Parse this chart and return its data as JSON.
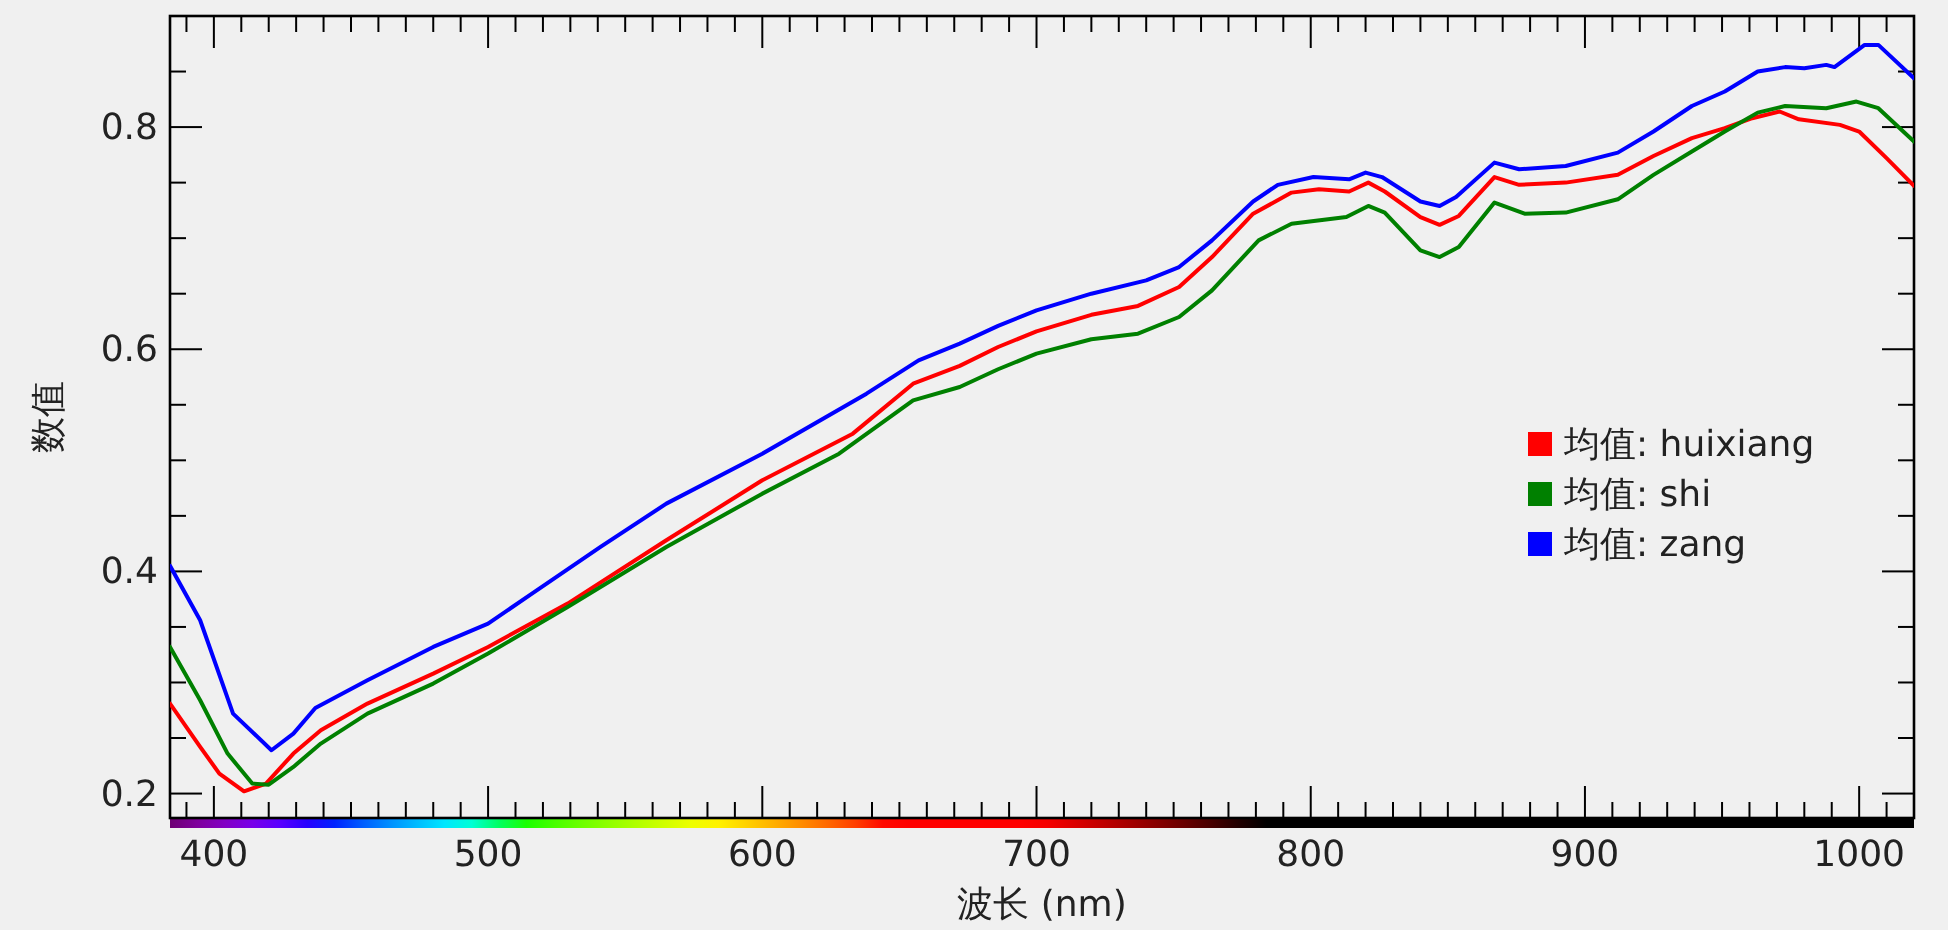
{
  "chart_data": {
    "type": "line",
    "xlabel": "波长 (nm)",
    "ylabel": "数值",
    "xlim": [
      384,
      1020
    ],
    "ylim": [
      0.178,
      0.9
    ],
    "xticks": [
      {
        "value": 390,
        "label": null
      },
      400,
      {
        "value": 410,
        "label": null
      },
      {
        "value": 420,
        "label": null
      },
      {
        "value": 430,
        "label": null
      },
      {
        "value": 440,
        "label": null
      },
      {
        "value": 450,
        "label": null
      },
      {
        "value": 460,
        "label": null
      },
      {
        "value": 470,
        "label": null
      },
      {
        "value": 480,
        "label": null
      },
      {
        "value": 490,
        "label": null
      },
      500,
      {
        "value": 510,
        "label": null
      },
      {
        "value": 520,
        "label": null
      },
      {
        "value": 530,
        "label": null
      },
      {
        "value": 540,
        "label": null
      },
      {
        "value": 550,
        "label": null
      },
      {
        "value": 560,
        "label": null
      },
      {
        "value": 570,
        "label": null
      },
      {
        "value": 580,
        "label": null
      },
      {
        "value": 590,
        "label": null
      },
      600,
      {
        "value": 610,
        "label": null
      },
      {
        "value": 620,
        "label": null
      },
      {
        "value": 630,
        "label": null
      },
      {
        "value": 640,
        "label": null
      },
      {
        "value": 650,
        "label": null
      },
      {
        "value": 660,
        "label": null
      },
      {
        "value": 670,
        "label": null
      },
      {
        "value": 680,
        "label": null
      },
      {
        "value": 690,
        "label": null
      },
      700,
      {
        "value": 710,
        "label": null
      },
      {
        "value": 720,
        "label": null
      },
      {
        "value": 730,
        "label": null
      },
      {
        "value": 740,
        "label": null
      },
      {
        "value": 750,
        "label": null
      },
      {
        "value": 760,
        "label": null
      },
      {
        "value": 770,
        "label": null
      },
      {
        "value": 780,
        "label": null
      },
      {
        "value": 790,
        "label": null
      },
      800,
      {
        "value": 810,
        "label": null
      },
      {
        "value": 820,
        "label": null
      },
      {
        "value": 830,
        "label": null
      },
      {
        "value": 840,
        "label": null
      },
      {
        "value": 850,
        "label": null
      },
      {
        "value": 860,
        "label": null
      },
      {
        "value": 870,
        "label": null
      },
      {
        "value": 880,
        "label": null
      },
      {
        "value": 890,
        "label": null
      },
      900,
      {
        "value": 910,
        "label": null
      },
      {
        "value": 920,
        "label": null
      },
      {
        "value": 930,
        "label": null
      },
      {
        "value": 940,
        "label": null
      },
      {
        "value": 950,
        "label": null
      },
      {
        "value": 960,
        "label": null
      },
      {
        "value": 970,
        "label": null
      },
      {
        "value": 980,
        "label": null
      },
      {
        "value": 990,
        "label": null
      },
      1000,
      {
        "value": 1010,
        "label": null
      }
    ],
    "yticks": [
      0.2,
      {
        "value": 0.25,
        "label": null
      },
      {
        "value": 0.3,
        "label": null
      },
      {
        "value": 0.35,
        "label": null
      },
      0.4,
      {
        "value": 0.45,
        "label": null
      },
      {
        "value": 0.5,
        "label": null
      },
      {
        "value": 0.55,
        "label": null
      },
      0.6,
      {
        "value": 0.65,
        "label": null
      },
      {
        "value": 0.7,
        "label": null
      },
      {
        "value": 0.75,
        "label": null
      },
      0.8,
      {
        "value": 0.85,
        "label": null
      }
    ],
    "grid": false,
    "legend": "right",
    "marker": "none",
    "line_style": "solid",
    "series": [
      {
        "name": "均值: huixiang",
        "color": "#ff0000",
        "x": [
          384,
          395,
          402,
          411,
          419,
          429,
          439,
          456,
          480,
          500,
          529,
          565,
          600,
          633,
          655,
          672,
          686,
          700,
          720,
          737,
          752,
          764,
          779,
          793,
          803,
          814,
          821,
          827,
          840,
          847,
          854,
          867,
          876,
          893,
          912,
          925,
          939,
          951,
          961,
          971,
          978,
          993,
          1000,
          1010,
          1020
        ],
        "values": [
          0.281,
          0.242,
          0.218,
          0.202,
          0.209,
          0.236,
          0.257,
          0.281,
          0.308,
          0.332,
          0.371,
          0.428,
          0.482,
          0.524,
          0.569,
          0.585,
          0.602,
          0.616,
          0.631,
          0.639,
          0.656,
          0.683,
          0.722,
          0.741,
          0.744,
          0.742,
          0.75,
          0.742,
          0.719,
          0.712,
          0.72,
          0.755,
          0.748,
          0.75,
          0.757,
          0.774,
          0.79,
          0.799,
          0.808,
          0.814,
          0.807,
          0.802,
          0.796,
          0.772,
          0.747
        ]
      },
      {
        "name": "均值: shi",
        "color": "#008000",
        "x": [
          384,
          395,
          405,
          414,
          420,
          429,
          439,
          456,
          480,
          500,
          529,
          565,
          600,
          628,
          655,
          672,
          686,
          700,
          720,
          737,
          752,
          764,
          781,
          793,
          813,
          821,
          827,
          840,
          847,
          854,
          867,
          878,
          893,
          912,
          925,
          939,
          951,
          963,
          973,
          988,
          999,
          1007,
          1020
        ],
        "values": [
          0.332,
          0.284,
          0.236,
          0.209,
          0.208,
          0.224,
          0.245,
          0.272,
          0.299,
          0.326,
          0.368,
          0.422,
          0.47,
          0.506,
          0.554,
          0.566,
          0.582,
          0.596,
          0.609,
          0.614,
          0.629,
          0.653,
          0.698,
          0.713,
          0.719,
          0.729,
          0.723,
          0.689,
          0.683,
          0.692,
          0.732,
          0.722,
          0.723,
          0.735,
          0.757,
          0.778,
          0.796,
          0.813,
          0.819,
          0.817,
          0.823,
          0.817,
          0.787
        ]
      },
      {
        "name": "均值: zang",
        "color": "#0000ff",
        "x": [
          384,
          395,
          407,
          421,
          429,
          437,
          456,
          480,
          500,
          516,
          541,
          565,
          600,
          638,
          657,
          672,
          686,
          700,
          720,
          740,
          752,
          764,
          779,
          788,
          801,
          814,
          820,
          826,
          840,
          847,
          853,
          867,
          876,
          893,
          912,
          925,
          939,
          951,
          963,
          973,
          980,
          988,
          991,
          1002,
          1007,
          1020
        ],
        "values": [
          0.405,
          0.356,
          0.272,
          0.239,
          0.254,
          0.277,
          0.302,
          0.332,
          0.353,
          0.38,
          0.422,
          0.461,
          0.506,
          0.56,
          0.59,
          0.605,
          0.621,
          0.635,
          0.65,
          0.662,
          0.674,
          0.698,
          0.733,
          0.748,
          0.755,
          0.753,
          0.759,
          0.755,
          0.733,
          0.729,
          0.737,
          0.768,
          0.762,
          0.765,
          0.777,
          0.796,
          0.819,
          0.832,
          0.85,
          0.854,
          0.853,
          0.856,
          0.854,
          0.874,
          0.874,
          0.844
        ]
      }
    ]
  }
}
